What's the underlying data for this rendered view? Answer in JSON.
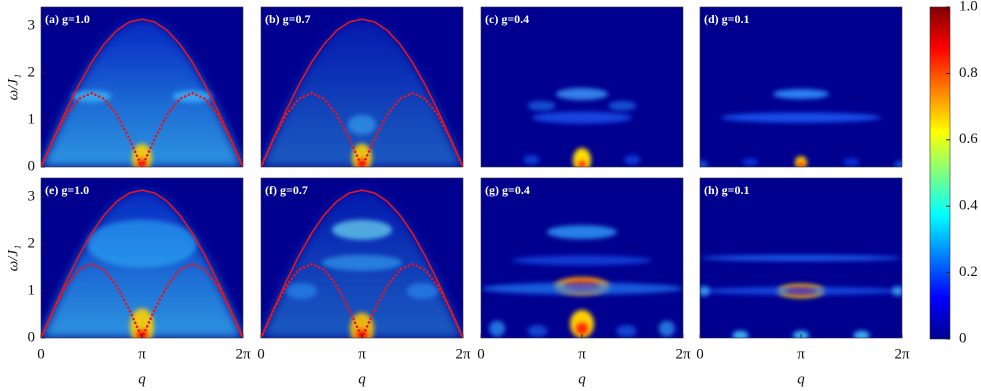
{
  "chart_data": [
    {
      "type": "heatmap",
      "title": "(a) g=1.0",
      "xlim": [
        0,
        6.2832
      ],
      "ylim": [
        0,
        3.4
      ],
      "yticks": [
        0,
        1,
        2,
        3
      ],
      "ylabel": "ω/J₁",
      "x": [
        0,
        0.393,
        0.785,
        1.178,
        1.571,
        1.963,
        2.356,
        2.749,
        3.142,
        3.534,
        3.927,
        4.32,
        4.712,
        5.105,
        5.498,
        5.89,
        6.283
      ],
      "series": [
        {
          "line_style": "solid",
          "color": "#e8141e",
          "values": [
            0,
            0.613,
            1.202,
            1.746,
            2.221,
            2.612,
            2.902,
            3.082,
            3.142,
            3.082,
            2.902,
            2.612,
            2.221,
            1.746,
            1.202,
            0.613,
            0
          ]
        },
        {
          "line_style": "dotted",
          "color": "#e8141e",
          "values": [
            0,
            0.601,
            1.111,
            1.451,
            1.571,
            1.451,
            1.111,
            0.601,
            0,
            0.601,
            1.111,
            1.451,
            1.571,
            1.451,
            1.111,
            0.601,
            0
          ]
        }
      ]
    },
    {
      "type": "heatmap",
      "title": "(b) g=0.7",
      "xlim": [
        0,
        6.2832
      ],
      "ylim": [
        0,
        3.4
      ],
      "x": [
        0,
        0.393,
        0.785,
        1.178,
        1.571,
        1.963,
        2.356,
        2.749,
        3.142,
        3.534,
        3.927,
        4.32,
        4.712,
        5.105,
        5.498,
        5.89,
        6.283
      ],
      "series": [
        {
          "line_style": "solid",
          "color": "#e8141e",
          "values": [
            0,
            0.613,
            1.202,
            1.746,
            2.221,
            2.612,
            2.902,
            3.082,
            3.142,
            3.082,
            2.902,
            2.612,
            2.221,
            1.746,
            1.202,
            0.613,
            0
          ]
        },
        {
          "line_style": "dotted",
          "color": "#e8141e",
          "values": [
            0,
            0.601,
            1.111,
            1.451,
            1.571,
            1.451,
            1.111,
            0.601,
            0,
            0.601,
            1.111,
            1.451,
            1.571,
            1.451,
            1.111,
            0.601,
            0
          ]
        }
      ]
    },
    {
      "type": "heatmap",
      "title": "(c) g=0.4",
      "xlim": [
        0,
        6.2832
      ],
      "ylim": [
        0,
        3.4
      ]
    },
    {
      "type": "heatmap",
      "title": "(d) g=0.1",
      "xlim": [
        0,
        6.2832
      ],
      "ylim": [
        0,
        3.4
      ]
    },
    {
      "type": "heatmap",
      "title": "(e) g=1.0",
      "xlim": [
        0,
        6.2832
      ],
      "ylim": [
        0,
        3.4
      ],
      "yticks": [
        0,
        1,
        2,
        3
      ],
      "ylabel": "ω/J₁",
      "xticks": [
        0,
        {
          "value": 3.1416,
          "label": "π"
        },
        {
          "value": 6.2832,
          "label": "2π"
        }
      ],
      "xlabel": "q",
      "x": [
        0,
        0.393,
        0.785,
        1.178,
        1.571,
        1.963,
        2.356,
        2.749,
        3.142,
        3.534,
        3.927,
        4.32,
        4.712,
        5.105,
        5.498,
        5.89,
        6.283
      ],
      "series": [
        {
          "line_style": "solid",
          "color": "#e8141e",
          "values": [
            0,
            0.613,
            1.202,
            1.746,
            2.221,
            2.612,
            2.902,
            3.082,
            3.142,
            3.082,
            2.902,
            2.612,
            2.221,
            1.746,
            1.202,
            0.613,
            0
          ]
        },
        {
          "line_style": "dotted",
          "color": "#e8141e",
          "values": [
            0,
            0.601,
            1.111,
            1.451,
            1.571,
            1.451,
            1.111,
            0.601,
            0,
            0.601,
            1.111,
            1.451,
            1.571,
            1.451,
            1.111,
            0.601,
            0
          ]
        }
      ]
    },
    {
      "type": "heatmap",
      "title": "(f) g=0.7",
      "xlim": [
        0,
        6.2832
      ],
      "ylim": [
        0,
        3.4
      ],
      "xticks": [
        0,
        {
          "value": 3.1416,
          "label": "π"
        },
        {
          "value": 6.2832,
          "label": "2π"
        }
      ],
      "xlabel": "q",
      "x": [
        0,
        0.393,
        0.785,
        1.178,
        1.571,
        1.963,
        2.356,
        2.749,
        3.142,
        3.534,
        3.927,
        4.32,
        4.712,
        5.105,
        5.498,
        5.89,
        6.283
      ],
      "series": [
        {
          "line_style": "solid",
          "color": "#e8141e",
          "values": [
            0,
            0.613,
            1.202,
            1.746,
            2.221,
            2.612,
            2.902,
            3.082,
            3.142,
            3.082,
            2.902,
            2.612,
            2.221,
            1.746,
            1.202,
            0.613,
            0
          ]
        },
        {
          "line_style": "dotted",
          "color": "#e8141e",
          "values": [
            0,
            0.601,
            1.111,
            1.451,
            1.571,
            1.451,
            1.111,
            0.601,
            0,
            0.601,
            1.111,
            1.451,
            1.571,
            1.451,
            1.111,
            0.601,
            0
          ]
        }
      ]
    },
    {
      "type": "heatmap",
      "title": "(g) g=0.4",
      "xlim": [
        0,
        6.2832
      ],
      "ylim": [
        0,
        3.4
      ],
      "xticks": [
        0,
        {
          "value": 3.1416,
          "label": "π"
        },
        {
          "value": 6.2832,
          "label": "2π"
        }
      ],
      "xlabel": "q"
    },
    {
      "type": "heatmap",
      "title": "(h) g=0.1",
      "xlim": [
        0,
        6.2832
      ],
      "ylim": [
        0,
        3.4
      ],
      "xticks": [
        0,
        {
          "value": 3.1416,
          "label": "π"
        },
        {
          "value": 6.2832,
          "label": "2π"
        }
      ],
      "xlabel": "q"
    },
    {
      "type": "colorbar",
      "zlim": [
        0,
        1
      ],
      "zticks": [
        0,
        0.2,
        0.4,
        0.6,
        0.8,
        {
          "value": 1,
          "label": "1.0"
        }
      ]
    }
  ]
}
